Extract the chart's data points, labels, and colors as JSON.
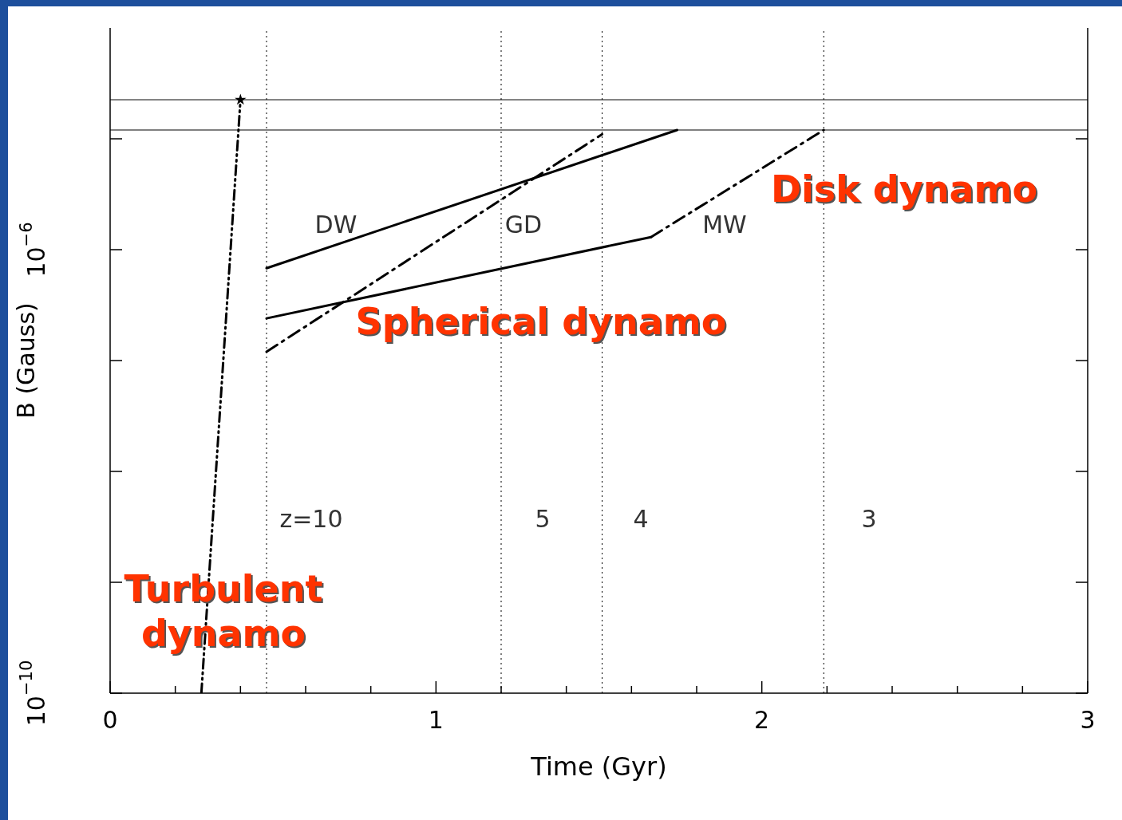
{
  "chart_data": {
    "type": "line",
    "xlabel": "Time (Gyr)",
    "ylabel": "B (Gauss)",
    "log": "y",
    "xlim": [
      0,
      3
    ],
    "xticks": [
      0,
      {
        "value": 0.2,
        "label": null
      },
      {
        "value": 0.4,
        "label": null
      },
      {
        "value": 0.6,
        "label": null
      },
      {
        "value": 0.8,
        "label": null
      },
      1,
      {
        "value": 1.2,
        "label": null
      },
      {
        "value": 1.4,
        "label": null
      },
      {
        "value": 1.6,
        "label": null
      },
      {
        "value": 1.8,
        "label": null
      },
      2,
      {
        "value": 2.2,
        "label": null
      },
      {
        "value": 2.4,
        "label": null
      },
      {
        "value": 2.6,
        "label": null
      },
      {
        "value": 2.8,
        "label": null
      },
      3
    ],
    "ylim": [
      1e-10,
      0.0001
    ],
    "yticks": [
      {
        "value": 1e-10,
        "label": "10$^{−10}$"
      },
      {
        "value": 1e-09,
        "label": null
      },
      {
        "value": 1e-08,
        "label": null
      },
      {
        "value": 1e-07,
        "label": null
      },
      {
        "value": 1e-06,
        "label": "10$^{−6}$"
      },
      {
        "value": 1e-05,
        "label": null
      }
    ],
    "series": [
      {
        "type": "line",
        "color": "#000000",
        "line_style": "solid",
        "x": [
          0.48,
          1.74
        ],
        "values": [
          6.8e-07,
          1.2e-05
        ]
      },
      {
        "type": "line",
        "color": "#000000",
        "line_style": "dashed",
        "x": [
          0.48,
          1.51
        ],
        "values": [
          1.2e-07,
          1.1e-05
        ]
      },
      {
        "type": "line",
        "color": "#000000",
        "line_style": "solid",
        "x": [
          0.48,
          1.66
        ],
        "values": [
          2.4e-07,
          1.3e-06
        ]
      },
      {
        "type": "line",
        "color": "#000000",
        "line_style": "dashed",
        "x": [
          1.66,
          2.19
        ],
        "values": [
          1.3e-06,
          1.2e-05
        ]
      },
      {
        "type": "line",
        "color": "#000000",
        "line_style": "dotted",
        "x": [
          0.28,
          0.4
        ],
        "values": [
          1e-10,
          2.25e-05
        ]
      },
      {
        "type": "scatter",
        "color": "#000000",
        "marker": "star",
        "x": [
          0.4
        ],
        "values": [
          2.25e-05
        ]
      }
    ],
    "ref_lines": [
      {
        "axis": "y",
        "value": 2.25e-05,
        "color": "#000000",
        "line_style": "solid"
      },
      {
        "axis": "y",
        "value": 1.2e-05,
        "color": "#000000",
        "line_style": "solid"
      },
      {
        "axis": "x",
        "value": 0.48,
        "color": "#000000",
        "line_style": "dotted"
      },
      {
        "axis": "x",
        "value": 1.2,
        "color": "#000000",
        "line_style": "dotted"
      },
      {
        "axis": "x",
        "value": 1.51,
        "color": "#000000",
        "line_style": "dotted"
      },
      {
        "axis": "x",
        "value": 2.19,
        "color": "#000000",
        "line_style": "dotted"
      }
    ],
    "annotations": [
      "Disk dynamo",
      "Spherical dynamo",
      "Turbulent\ndynamo",
      "DW",
      "GD",
      "MW",
      "z=10",
      "5",
      "4",
      "3"
    ]
  }
}
